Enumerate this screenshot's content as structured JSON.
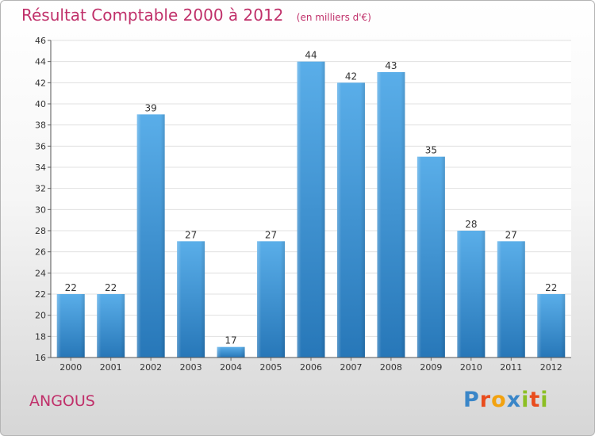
{
  "header": {
    "title": "Résultat Comptable 2000 à 2012",
    "subtitle": "(en milliers d'€)"
  },
  "footer": {
    "commune": "ANGOUS",
    "logo_text": "Proxiti"
  },
  "colors": {
    "title": "#c0306a",
    "bar_top": "#5aaee9",
    "bar_bottom": "#2777b8",
    "grid": "#e0e0e0"
  },
  "chart_data": {
    "type": "bar",
    "title": "Résultat Comptable 2000 à 2012",
    "subtitle": "(en milliers d'€)",
    "xlabel": "",
    "ylabel": "",
    "categories": [
      "2000",
      "2001",
      "2002",
      "2003",
      "2004",
      "2005",
      "2006",
      "2007",
      "2008",
      "2009",
      "2010",
      "2011",
      "2012"
    ],
    "values": [
      22,
      22,
      39,
      27,
      17,
      27,
      44,
      42,
      43,
      35,
      28,
      27,
      22
    ],
    "ylim": [
      16,
      46
    ],
    "yticks": [
      16,
      18,
      20,
      22,
      24,
      26,
      28,
      30,
      32,
      34,
      36,
      38,
      40,
      42,
      44,
      46
    ],
    "grid": true,
    "data_labels": true
  }
}
